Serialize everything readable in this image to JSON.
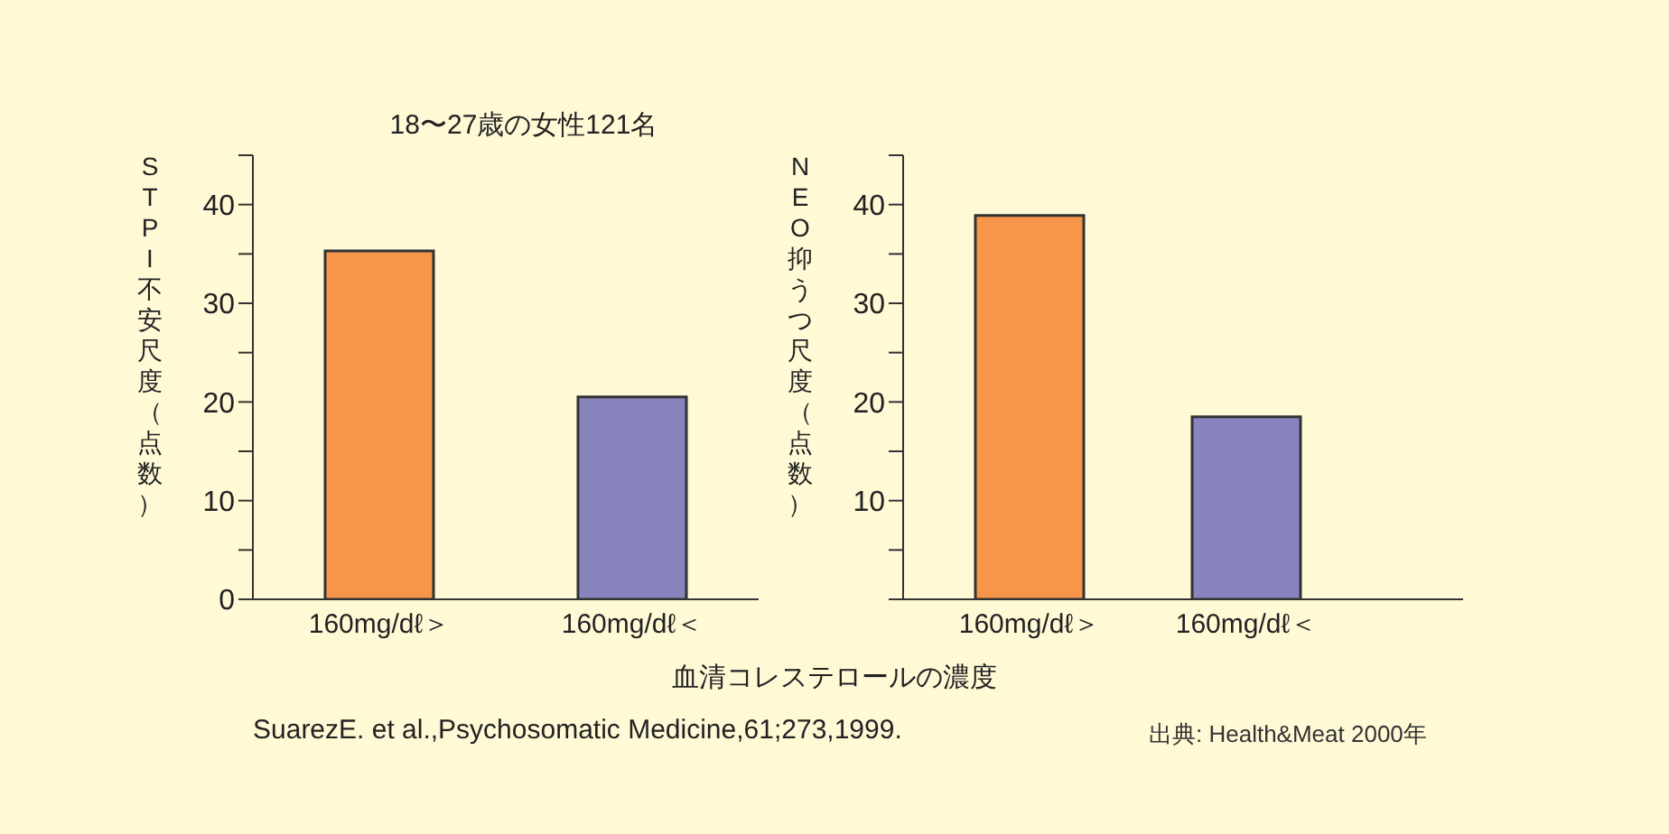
{
  "chart_data": [
    {
      "type": "bar",
      "title": "18〜27歳の女性121名",
      "ylabel": "STPI不安尺度（点数）",
      "xlabel": "血清コレステロールの濃度",
      "categories": [
        "160mg/dℓ＞",
        "160mg/dℓ＜"
      ],
      "values": [
        35.3,
        20.5
      ],
      "colors": [
        "#f7964a",
        "#8884bd"
      ],
      "ylim": [
        0,
        45
      ],
      "yticks": [
        0,
        {
          "value": 5,
          "label": null
        },
        10,
        {
          "value": 15,
          "label": null
        },
        20,
        {
          "value": 25,
          "label": null
        },
        30,
        {
          "value": 35,
          "label": null
        },
        40,
        {
          "value": 45,
          "label": null
        }
      ],
      "annotations": [
        "SuarezE. et al.,Psychosomatic Medicine,61;273,1999.",
        "出典: Health&Meat 2000年"
      ]
    },
    {
      "type": "bar",
      "ylabel": "NEO抑うつ尺度（点数）",
      "categories": [
        "160mg/dℓ＞",
        "160mg/dℓ＜"
      ],
      "values": [
        38.9,
        18.5
      ],
      "colors": [
        "#f7964a",
        "#8884bd"
      ],
      "ylim": [
        0,
        45
      ],
      "yticks": [
        {
          "value": 0,
          "label": null
        },
        {
          "value": 5,
          "label": null
        },
        10,
        {
          "value": 15,
          "label": null
        },
        20,
        {
          "value": 25,
          "label": null
        },
        30,
        {
          "value": 35,
          "label": null
        },
        40,
        {
          "value": 45,
          "label": null
        }
      ]
    }
  ]
}
